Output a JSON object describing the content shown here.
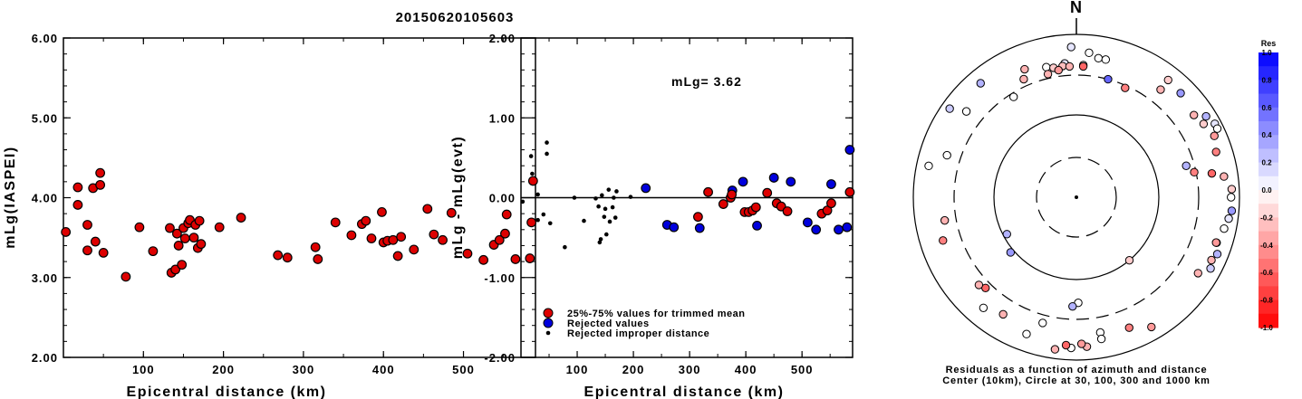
{
  "figure_title": "20150620105603",
  "chart_data": [
    {
      "type": "scatter",
      "panel": "left",
      "xlabel": "Epicentral distance (km)",
      "ylabel": "mLg(IASPEI)",
      "xlim": [
        0,
        590
      ],
      "ylim": [
        2.0,
        6.0
      ],
      "x_ticks": [
        "100",
        "200",
        "300",
        "400",
        "500"
      ],
      "y_ticks": [
        "2.00",
        "3.00",
        "4.00",
        "5.00",
        "6.00"
      ],
      "marker_color": "#dd0000",
      "points": [
        [
          3,
          3.57
        ],
        [
          18,
          4.13
        ],
        [
          18,
          3.91
        ],
        [
          30,
          3.66
        ],
        [
          30,
          3.34
        ],
        [
          37,
          4.12
        ],
        [
          40,
          3.45
        ],
        [
          46,
          4.31
        ],
        [
          46,
          4.16
        ],
        [
          50,
          3.31
        ],
        [
          78,
          3.01
        ],
        [
          95,
          3.63
        ],
        [
          112,
          3.33
        ],
        [
          133,
          3.62
        ],
        [
          135,
          3.06
        ],
        [
          140,
          3.1
        ],
        [
          142,
          3.55
        ],
        [
          144,
          3.4
        ],
        [
          148,
          3.16
        ],
        [
          150,
          3.62
        ],
        [
          152,
          3.49
        ],
        [
          156,
          3.68
        ],
        [
          158,
          3.72
        ],
        [
          163,
          3.5
        ],
        [
          165,
          3.66
        ],
        [
          168,
          3.37
        ],
        [
          170,
          3.71
        ],
        [
          172,
          3.42
        ],
        [
          195,
          3.63
        ],
        [
          222,
          3.75
        ],
        [
          268,
          3.28
        ],
        [
          280,
          3.25
        ],
        [
          315,
          3.38
        ],
        [
          318,
          3.23
        ],
        [
          340,
          3.69
        ],
        [
          360,
          3.53
        ],
        [
          373,
          3.67
        ],
        [
          378,
          3.71
        ],
        [
          385,
          3.49
        ],
        [
          398,
          3.82
        ],
        [
          400,
          3.44
        ],
        [
          405,
          3.46
        ],
        [
          412,
          3.47
        ],
        [
          418,
          3.27
        ],
        [
          422,
          3.51
        ],
        [
          438,
          3.35
        ],
        [
          455,
          3.86
        ],
        [
          463,
          3.54
        ],
        [
          474,
          3.47
        ],
        [
          485,
          3.81
        ],
        [
          505,
          3.3
        ],
        [
          525,
          3.22
        ],
        [
          538,
          3.41
        ],
        [
          545,
          3.47
        ],
        [
          552,
          3.55
        ],
        [
          554,
          3.79
        ],
        [
          565,
          3.23
        ],
        [
          583,
          3.24
        ],
        [
          585,
          3.69
        ],
        [
          587,
          4.21
        ]
      ]
    },
    {
      "type": "scatter",
      "panel": "middle",
      "xlabel": "Epicentral distance (km)",
      "ylabel": "mLg - mLg(evt)",
      "xlim": [
        0,
        590
      ],
      "ylim": [
        -2.0,
        2.0
      ],
      "x_ticks": [
        "100",
        "200",
        "300",
        "400",
        "500"
      ],
      "y_ticks": [
        "-2.00",
        "-1.00",
        "0.00",
        "1.00",
        "2.00"
      ],
      "annotation": "mLg= 3.62",
      "reference_line_y": 0.0,
      "legend": {
        "position": "bottom-left",
        "entries": [
          "25%-75% values for trimmed mean",
          "Rejected values",
          "Rejected improper distance"
        ]
      },
      "colors": {
        "trimmed": "#dd0000",
        "rejected": "#0000dd",
        "distance": "#000000"
      },
      "series_trimmed": [
        [
          315,
          -0.24
        ],
        [
          333,
          0.07
        ],
        [
          360,
          -0.08
        ],
        [
          373,
          0.0
        ],
        [
          375,
          0.04
        ],
        [
          398,
          -0.18
        ],
        [
          405,
          -0.18
        ],
        [
          412,
          -0.16
        ],
        [
          418,
          -0.12
        ],
        [
          438,
          0.06
        ],
        [
          455,
          -0.07
        ],
        [
          463,
          -0.11
        ],
        [
          474,
          -0.17
        ],
        [
          535,
          -0.2
        ],
        [
          545,
          -0.16
        ],
        [
          552,
          -0.07
        ],
        [
          585,
          0.07
        ]
      ],
      "series_rejected": [
        [
          222,
          0.12
        ],
        [
          260,
          -0.34
        ],
        [
          272,
          -0.37
        ],
        [
          318,
          -0.38
        ],
        [
          376,
          0.09
        ],
        [
          395,
          0.2
        ],
        [
          420,
          -0.35
        ],
        [
          450,
          0.25
        ],
        [
          480,
          0.2
        ],
        [
          510,
          -0.31
        ],
        [
          525,
          -0.4
        ],
        [
          552,
          0.17
        ],
        [
          565,
          -0.4
        ],
        [
          580,
          -0.37
        ],
        [
          585,
          0.6
        ]
      ],
      "series_distance": [
        [
          3,
          -0.05
        ],
        [
          18,
          0.52
        ],
        [
          20,
          0.3
        ],
        [
          30,
          0.04
        ],
        [
          30,
          -0.28
        ],
        [
          40,
          -0.21
        ],
        [
          46,
          0.69
        ],
        [
          46,
          0.55
        ],
        [
          52,
          -0.32
        ],
        [
          78,
          -0.62
        ],
        [
          95,
          0.0
        ],
        [
          112,
          -0.29
        ],
        [
          133,
          -0.01
        ],
        [
          138,
          -0.11
        ],
        [
          140,
          -0.56
        ],
        [
          142,
          -0.52
        ],
        [
          144,
          0.03
        ],
        [
          148,
          -0.24
        ],
        [
          150,
          -0.14
        ],
        [
          152,
          -0.46
        ],
        [
          156,
          0.1
        ],
        [
          158,
          -0.3
        ],
        [
          163,
          -0.12
        ],
        [
          165,
          0.0
        ],
        [
          168,
          -0.25
        ],
        [
          170,
          0.08
        ],
        [
          195,
          0.01
        ]
      ]
    },
    {
      "type": "polar-scatter",
      "panel": "right",
      "north_label": "N",
      "caption_line1": "Residuals as a function of azimuth and distance",
      "caption_line2": "Center (10km), Circle at 30, 100, 300 and 1000 km",
      "colorbar_title": "Res",
      "colorbar_ticks": [
        "1.0",
        "0.8",
        "0.6",
        "0.4",
        "0.2",
        "0.0",
        "-0.2",
        "-0.4",
        "-0.6",
        "-0.8",
        "-1.0"
      ],
      "points": [
        {
          "az": 15,
          "d": 300,
          "res": 0.6
        },
        {
          "az": -2,
          "d": 690,
          "res": 0.1
        },
        {
          "az": 5,
          "d": 590,
          "res": 0.0
        },
        {
          "az": 9,
          "d": 520,
          "res": 0.0
        },
        {
          "az": 12,
          "d": 520,
          "res": 0.0
        },
        {
          "az": -40,
          "d": 660,
          "res": 0.3
        },
        {
          "az": -22,
          "d": 480,
          "res": -0.3
        },
        {
          "az": -5,
          "d": 430,
          "res": 0.1
        },
        {
          "az": -13,
          "d": 420,
          "res": 0.0
        },
        {
          "az": -10,
          "d": 395,
          "res": -0.2
        },
        {
          "az": -6,
          "d": 400,
          "res": -0.25
        },
        {
          "az": -3,
          "d": 390,
          "res": -0.3
        },
        {
          "az": -8,
          "d": 360,
          "res": -0.4
        },
        {
          "az": -13,
          "d": 340,
          "res": -0.3
        },
        {
          "az": 3,
          "d": 405,
          "res": 0.0
        },
        {
          "az": 3,
          "d": 390,
          "res": -0.6
        },
        {
          "az": -24,
          "d": 370,
          "res": -0.3
        },
        {
          "az": -32,
          "d": 270,
          "res": 0.0
        },
        {
          "az": 24,
          "d": 280,
          "res": -0.5
        },
        {
          "az": 38,
          "d": 460,
          "res": -0.3
        },
        {
          "az": 38,
          "d": 660,
          "res": -0.2
        },
        {
          "az": 45,
          "d": 630,
          "res": 0.4
        },
        {
          "az": 55,
          "d": 560,
          "res": -0.3
        },
        {
          "az": 58,
          "d": 740,
          "res": 0.3
        },
        {
          "az": 60,
          "d": 620,
          "res": -0.2
        },
        {
          "az": 62,
          "d": 830,
          "res": 0.1
        },
        {
          "az": 64,
          "d": 830,
          "res": 0.0
        },
        {
          "az": 66,
          "d": 700,
          "res": -0.4
        },
        {
          "az": 72,
          "d": 620,
          "res": -0.5
        },
        {
          "az": 74,
          "d": 240,
          "res": 0.3
        },
        {
          "az": 78,
          "d": 285,
          "res": -0.5
        },
        {
          "az": 80,
          "d": 470,
          "res": -0.6
        },
        {
          "az": 82,
          "d": 660,
          "res": -0.3
        },
        {
          "az": 87,
          "d": 800,
          "res": -0.2
        },
        {
          "az": 90,
          "d": 780,
          "res": 0.0
        },
        {
          "az": 95,
          "d": 810,
          "res": 0.4
        },
        {
          "az": 98,
          "d": 760,
          "res": 0.1
        },
        {
          "az": 102,
          "d": 700,
          "res": 0.0
        },
        {
          "az": 108,
          "d": 630,
          "res": 0.0
        },
        {
          "az": 108,
          "d": 620,
          "res": -0.4
        },
        {
          "az": 112,
          "d": 720,
          "res": 0.3
        },
        {
          "az": 115,
          "d": 660,
          "res": -0.3
        },
        {
          "az": 118,
          "d": 720,
          "res": 0.2
        },
        {
          "az": 122,
          "d": 560,
          "res": -0.3
        },
        {
          "az": 140,
          "d": 100,
          "res": -0.2
        },
        {
          "az": 150,
          "d": 680,
          "res": -0.4
        },
        {
          "az": 158,
          "d": 520,
          "res": -0.5
        },
        {
          "az": 170,
          "d": 470,
          "res": 0.0
        },
        {
          "az": 170,
          "d": 570,
          "res": 0.0
        },
        {
          "az": 176,
          "d": 680,
          "res": -0.3
        },
        {
          "az": 178,
          "d": 620,
          "res": -0.4
        },
        {
          "az": 179,
          "d": 190,
          "res": 0.0
        },
        {
          "az": -178,
          "d": 210,
          "res": 0.3
        },
        {
          "az": -178,
          "d": 700,
          "res": 0.0
        },
        {
          "az": -176,
          "d": 650,
          "res": -0.6
        },
        {
          "az": -172,
          "d": 760,
          "res": -0.3
        },
        {
          "az": -165,
          "d": 380,
          "res": 0.0
        },
        {
          "az": -160,
          "d": 600,
          "res": 0.0
        },
        {
          "az": -148,
          "d": 480,
          "res": -0.3
        },
        {
          "az": -135,
          "d": 360,
          "res": -0.6
        },
        {
          "az": -132,
          "d": 390,
          "res": -0.3
        },
        {
          "az": -108,
          "d": 510,
          "res": -0.5
        },
        {
          "az": -100,
          "d": 420,
          "res": -0.3
        },
        {
          "az": -140,
          "d": 580,
          "res": 0.0
        },
        {
          "az": -118,
          "d": 90,
          "res": 0.3
        },
        {
          "az": -52,
          "d": 500,
          "res": 0.0
        },
        {
          "az": -72,
          "d": 450,
          "res": 0.0
        },
        {
          "az": -130,
          "d": 110,
          "res": 0.4
        },
        {
          "az": -55,
          "d": 780,
          "res": 0.2
        },
        {
          "az": -78,
          "d": 700,
          "res": 0.0
        }
      ]
    }
  ]
}
